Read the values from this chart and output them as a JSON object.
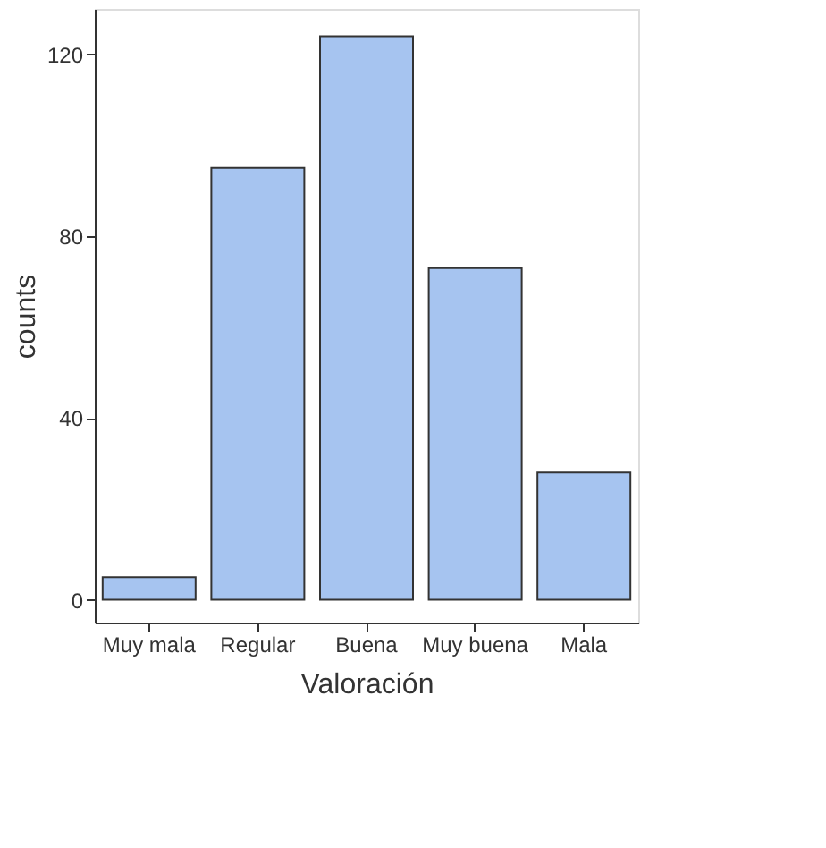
{
  "chart_data": {
    "type": "bar",
    "xlabel": "Valoración",
    "ylabel": "counts",
    "categories": [
      "Muy mala",
      "Regular",
      "Buena",
      "Muy buena",
      "Mala"
    ],
    "values": [
      5,
      95,
      124,
      73,
      28
    ],
    "color": "#a6c4f0",
    "ylim": [
      -5,
      130
    ],
    "yticks": [
      0,
      40,
      80,
      120
    ],
    "grid": false
  }
}
